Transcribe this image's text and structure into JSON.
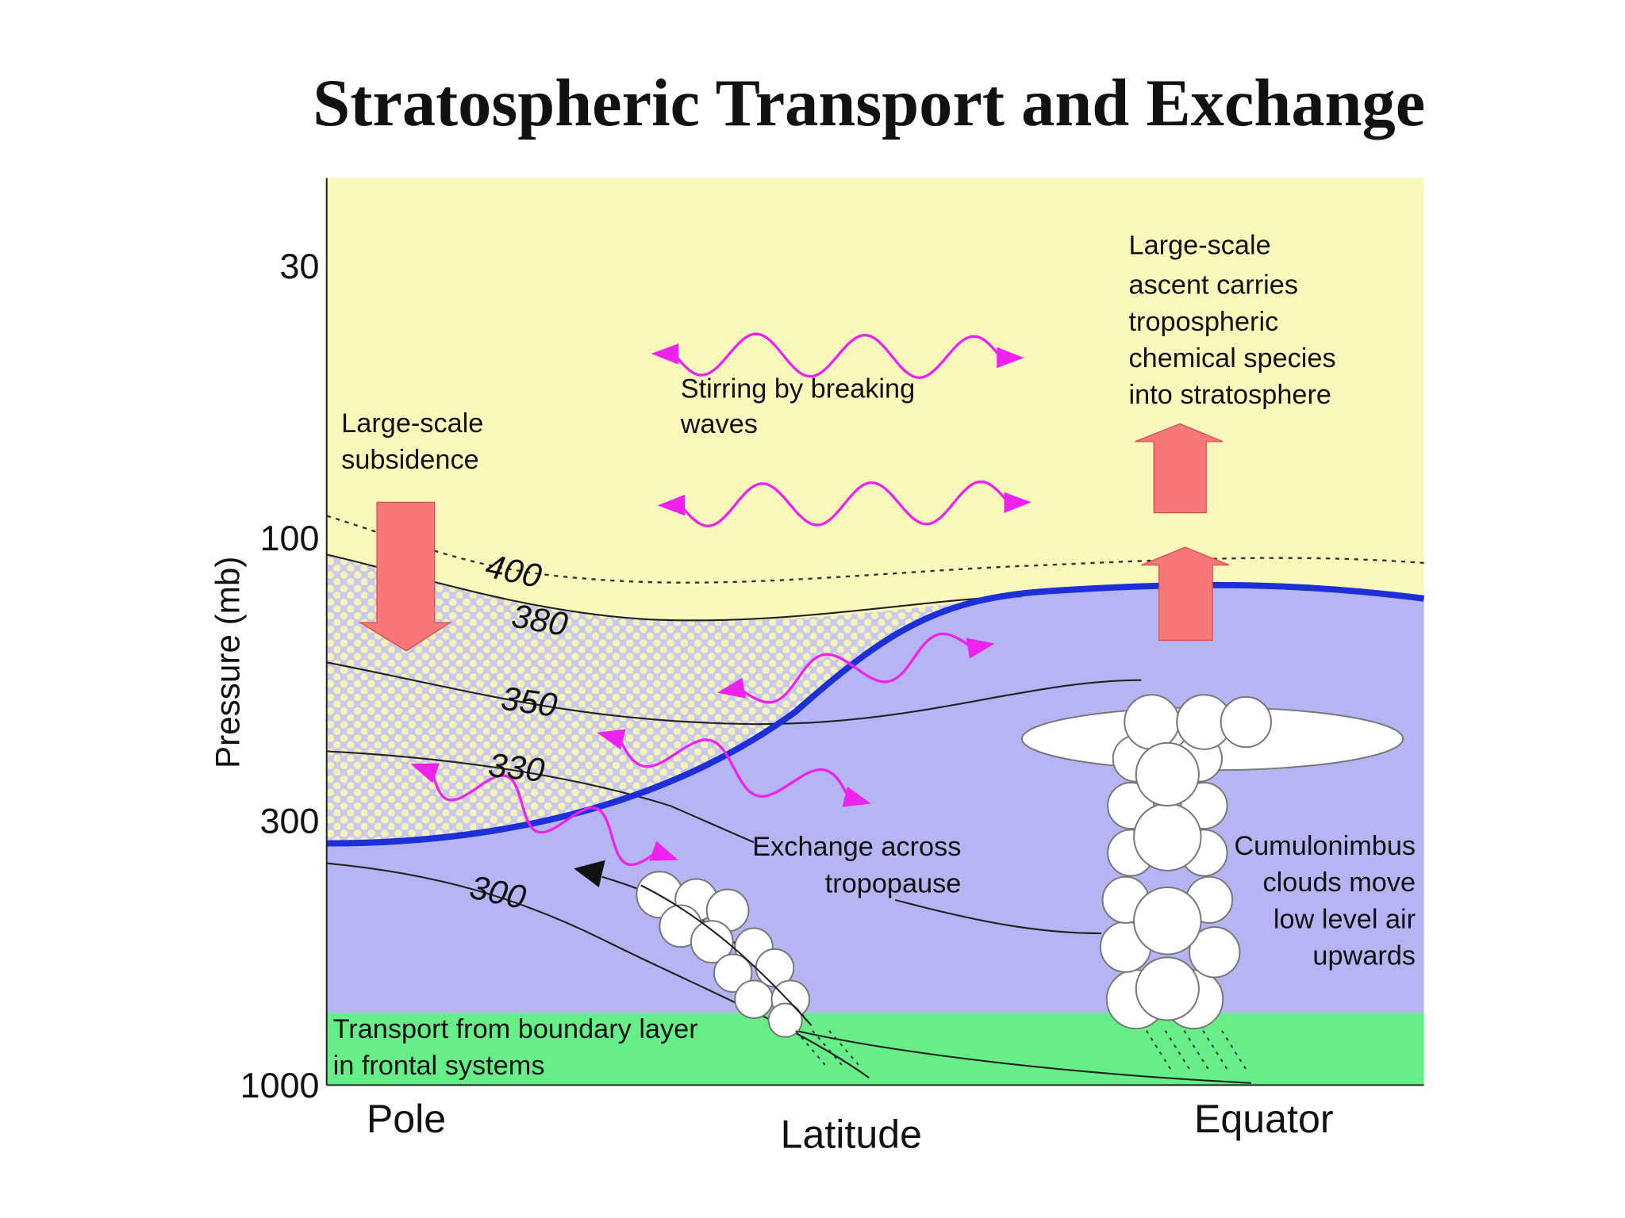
{
  "title": "Stratospheric Transport and Exchange",
  "y_axis": {
    "label": "Pressure (mb)",
    "ticks": [
      30,
      100,
      300,
      1000
    ]
  },
  "x_axis": {
    "label": "Latitude",
    "left": "Pole",
    "right": "Equator"
  },
  "isentropes": [
    400,
    380,
    350,
    330,
    300
  ],
  "annotations": {
    "subsidence": [
      "Large-scale",
      "subsidence"
    ],
    "stirring": [
      "Stirring by breaking",
      "waves"
    ],
    "ascent": [
      "Large-scale",
      "ascent carries",
      "tropospheric",
      "chemical species",
      "into stratosphere"
    ],
    "exchange": [
      "Exchange across",
      "tropopause"
    ],
    "cumulonimbus": [
      "Cumulonimbus",
      "clouds move",
      "low level air",
      "upwards"
    ],
    "boundary": [
      "Transport from boundary layer",
      "in frontal systems"
    ]
  }
}
